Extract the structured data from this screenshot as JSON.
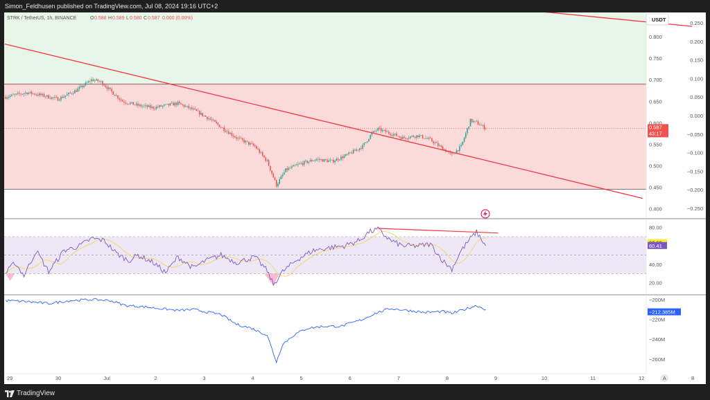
{
  "topbar": {
    "text": "Simon_Feldhusen published on TradingView.com, Jul 08, 2024 19:16 UTC+2"
  },
  "bottombar": {
    "brand": "TradingView"
  },
  "header": {
    "symbol": "STRK / TetherUS, 1h, BINANCE",
    "o_label": "O",
    "o_value": "0.588",
    "h_label": "H",
    "h_value": "0.589",
    "l_label": "L",
    "l_value": "0.580",
    "c_label": "C",
    "c_value": "0.587",
    "change": "0.000 (0.00%)"
  },
  "colors": {
    "up": "#26a69a",
    "down": "#ef5350",
    "trendline": "#f23645",
    "zone_green": "#e8f5e9",
    "zone_red": "#fbdada",
    "rsi": "#7e57c2",
    "rsi_ma": "#f5d76e",
    "rsi_band": "#ede7f6",
    "indicator": "#2962ff"
  },
  "chart_data": [
    {
      "type": "candlestick",
      "currency_label": "USDT",
      "left_axis_ticks": [
        "0.800",
        "0.750",
        "0.700",
        "0.650",
        "0.600",
        "0.550",
        "0.500",
        "0.450",
        "0.400"
      ],
      "right_axis_ticks": [
        "0.250",
        "0.200",
        "0.150",
        "0.100",
        "0.050",
        "0.000",
        "−0.050",
        "−0.100",
        "−0.150",
        "−0.200",
        "−0.250"
      ],
      "price_badge": {
        "value": "0.587",
        "countdown": "43:17"
      },
      "ylim": [
        0.38,
        0.85
      ],
      "x_ticks": [
        "29",
        "30",
        "Jul",
        "2",
        "3",
        "4",
        "5",
        "6",
        "7",
        "8",
        "9",
        "10",
        "11",
        "12"
      ],
      "zones": [
        {
          "name": "green",
          "from": 0.69,
          "to": 0.87
        },
        {
          "name": "red",
          "from": 0.445,
          "to": 0.69
        }
      ],
      "anchors": [
        [
          0,
          0.66
        ],
        [
          14,
          0.67
        ],
        [
          22,
          0.665
        ],
        [
          34,
          0.655
        ],
        [
          46,
          0.675
        ],
        [
          56,
          0.7
        ],
        [
          62,
          0.695
        ],
        [
          68,
          0.675
        ],
        [
          76,
          0.65
        ],
        [
          86,
          0.64
        ],
        [
          96,
          0.635
        ],
        [
          104,
          0.64
        ],
        [
          112,
          0.645
        ],
        [
          122,
          0.63
        ],
        [
          132,
          0.61
        ],
        [
          140,
          0.59
        ],
        [
          150,
          0.565
        ],
        [
          162,
          0.545
        ],
        [
          170,
          0.51
        ],
        [
          176,
          0.455
        ],
        [
          182,
          0.49
        ],
        [
          192,
          0.505
        ],
        [
          202,
          0.515
        ],
        [
          212,
          0.51
        ],
        [
          222,
          0.525
        ],
        [
          232,
          0.545
        ],
        [
          238,
          0.575
        ],
        [
          242,
          0.585
        ],
        [
          250,
          0.575
        ],
        [
          258,
          0.565
        ],
        [
          268,
          0.57
        ],
        [
          276,
          0.56
        ],
        [
          284,
          0.54
        ],
        [
          290,
          0.525
        ],
        [
          296,
          0.545
        ],
        [
          302,
          0.605
        ],
        [
          306,
          0.6
        ],
        [
          312,
          0.587
        ]
      ],
      "n_candles": 313,
      "trendlines": [
        {
          "x1": -0.4,
          "y1": 0.783,
          "x2": 414,
          "y2": 0.424
        },
        {
          "x1": 326,
          "y1": 0.866,
          "x2": 446,
          "y2": 0.824
        }
      ],
      "icon": "lightning-icon"
    },
    {
      "type": "line",
      "name": "RSI",
      "axis_ticks": [
        "80.00",
        "40.00",
        "20.00"
      ],
      "badges": [
        {
          "value": "63.60"
        },
        {
          "value": "60.41"
        }
      ],
      "ylim": [
        10,
        88
      ],
      "band": [
        30,
        70
      ],
      "midline": 50,
      "rsi_anchors": [
        [
          0,
          30
        ],
        [
          6,
          42
        ],
        [
          12,
          28
        ],
        [
          20,
          55
        ],
        [
          28,
          32
        ],
        [
          38,
          55
        ],
        [
          48,
          60
        ],
        [
          56,
          68
        ],
        [
          64,
          66
        ],
        [
          72,
          52
        ],
        [
          80,
          44
        ],
        [
          86,
          50
        ],
        [
          96,
          42
        ],
        [
          104,
          31
        ],
        [
          112,
          48
        ],
        [
          122,
          36
        ],
        [
          130,
          44
        ],
        [
          140,
          50
        ],
        [
          150,
          42
        ],
        [
          162,
          48
        ],
        [
          170,
          33
        ],
        [
          174,
          18
        ],
        [
          180,
          32
        ],
        [
          190,
          46
        ],
        [
          200,
          55
        ],
        [
          210,
          58
        ],
        [
          220,
          60
        ],
        [
          230,
          66
        ],
        [
          236,
          75
        ],
        [
          242,
          78
        ],
        [
          250,
          66
        ],
        [
          258,
          60
        ],
        [
          268,
          60
        ],
        [
          276,
          62
        ],
        [
          284,
          44
        ],
        [
          290,
          35
        ],
        [
          296,
          55
        ],
        [
          302,
          68
        ],
        [
          306,
          75
        ],
        [
          312,
          60
        ]
      ],
      "divergence_line": {
        "x1": 242,
        "y1": 79,
        "x2": 320,
        "y2": 74
      }
    },
    {
      "type": "line",
      "name": "indicator",
      "axis_ticks": [
        "−200M",
        "−220M",
        "−240M",
        "−260M"
      ],
      "badge": "−212.385M",
      "ylim": [
        -272,
        -198
      ],
      "ind_anchors": [
        [
          0,
          -201
        ],
        [
          14,
          -202
        ],
        [
          28,
          -204
        ],
        [
          42,
          -201
        ],
        [
          56,
          -200
        ],
        [
          68,
          -201
        ],
        [
          78,
          -206
        ],
        [
          88,
          -207
        ],
        [
          100,
          -209
        ],
        [
          112,
          -211
        ],
        [
          122,
          -210
        ],
        [
          132,
          -213
        ],
        [
          140,
          -215
        ],
        [
          150,
          -225
        ],
        [
          160,
          -229
        ],
        [
          170,
          -236
        ],
        [
          176,
          -263
        ],
        [
          180,
          -245
        ],
        [
          188,
          -235
        ],
        [
          196,
          -229
        ],
        [
          206,
          -227
        ],
        [
          218,
          -227
        ],
        [
          232,
          -220
        ],
        [
          240,
          -214
        ],
        [
          250,
          -209
        ],
        [
          262,
          -211
        ],
        [
          272,
          -213
        ],
        [
          284,
          -212
        ],
        [
          290,
          -214
        ],
        [
          296,
          -211
        ],
        [
          302,
          -208
        ],
        [
          306,
          -206
        ],
        [
          312,
          -210
        ]
      ]
    }
  ],
  "axis_footer": {
    "a": "A",
    "b": "B"
  }
}
